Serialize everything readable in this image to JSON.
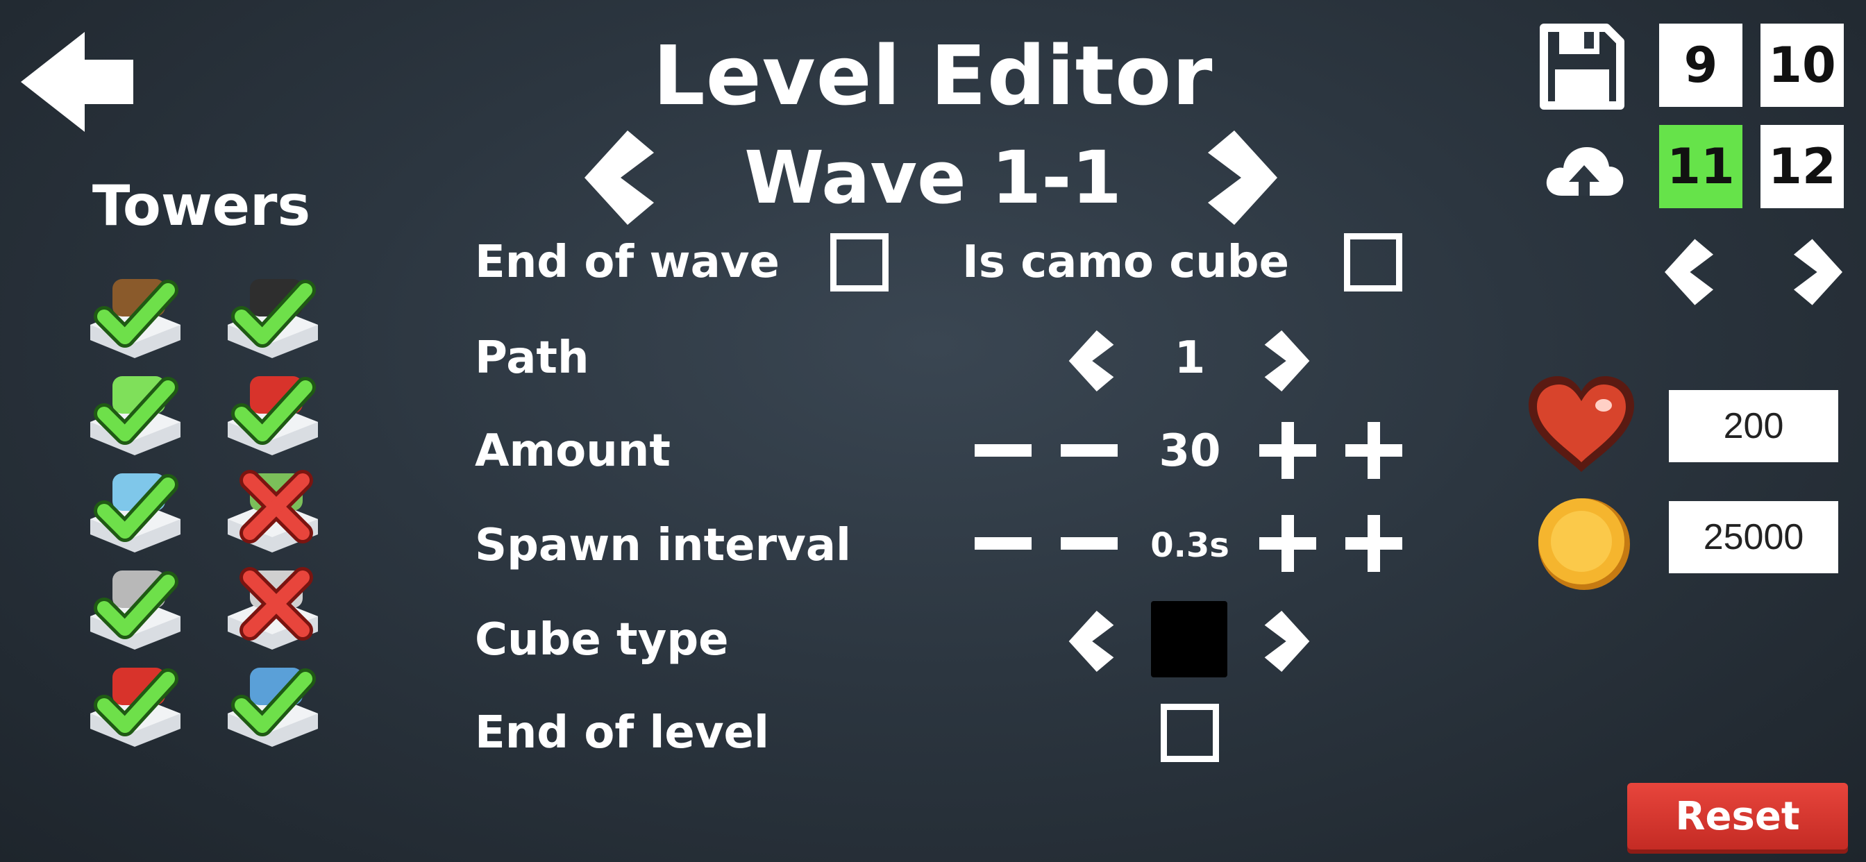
{
  "header": {
    "title": "Level Editor",
    "wave_label": "Wave 1-1"
  },
  "sidebar": {
    "title": "Towers",
    "towers": [
      {
        "icon": "crossbow-tower-icon",
        "enabled": true,
        "color": "#8a5a2b"
      },
      {
        "icon": "cannon-tower-icon",
        "enabled": true,
        "color": "#2e2e2e"
      },
      {
        "icon": "green-gun-tower-icon",
        "enabled": true,
        "color": "#7fe05a"
      },
      {
        "icon": "red-drill-tower-icon",
        "enabled": true,
        "color": "#d8332b"
      },
      {
        "icon": "blue-laser-tower-icon",
        "enabled": true,
        "color": "#7fc7ea"
      },
      {
        "icon": "dome-tower-icon",
        "enabled": false,
        "color": "#7bbf5a"
      },
      {
        "icon": "trap-tower-icon",
        "enabled": true,
        "color": "#b8b8b8"
      },
      {
        "icon": "radar-tower-icon",
        "enabled": false,
        "color": "#d0d0d0"
      },
      {
        "icon": "rocket-tower-icon",
        "enabled": true,
        "color": "#d8332b"
      },
      {
        "icon": "tesla-tower-icon",
        "enabled": true,
        "color": "#5aa0d8"
      }
    ]
  },
  "settings": {
    "end_of_wave": {
      "label": "End of wave",
      "checked": false
    },
    "is_camo_cube": {
      "label": "Is camo cube",
      "checked": false
    },
    "path": {
      "label": "Path",
      "value": "1"
    },
    "amount": {
      "label": "Amount",
      "value": "30"
    },
    "spawn_interval": {
      "label": "Spawn interval",
      "value": "0.3s"
    },
    "cube_type": {
      "label": "Cube type",
      "swatch_color": "#000000"
    },
    "end_of_level": {
      "label": "End of level",
      "checked": false
    }
  },
  "right_panel": {
    "levels": [
      "9",
      "10",
      "11",
      "12"
    ],
    "active_level": "11",
    "lives": "200",
    "coins": "25000",
    "reset_label": "Reset"
  },
  "colors": {
    "accent_green": "#66e34a",
    "reset_red": "#d8362e"
  }
}
